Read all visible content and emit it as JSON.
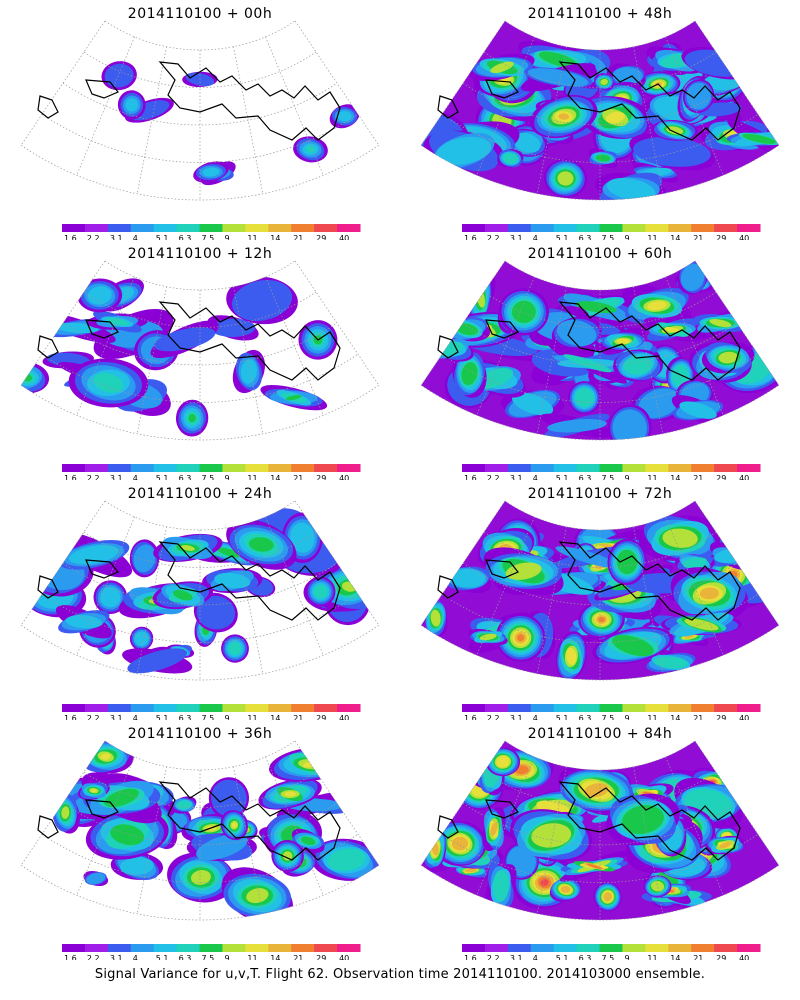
{
  "caption": "Signal Variance for u,v,T. Flight 62. Observation time 2014110100. 2014103000 ensemble.",
  "colorbar": {
    "labels": [
      "1.6",
      "2.2",
      "3.1",
      "4",
      "5.1",
      "6.3",
      "7.5",
      "9",
      "11",
      "14",
      "21",
      "29",
      "40"
    ],
    "colors": [
      "#8b00d4",
      "#a01ee8",
      "#3c5cf0",
      "#2b9bf0",
      "#22c0e6",
      "#1fd2b9",
      "#19c84a",
      "#b4e03a",
      "#e8e03a",
      "#e8b43a",
      "#f08030",
      "#f04850",
      "#f01e8c"
    ]
  },
  "chart_data": [
    {
      "type": "heatmap",
      "title": "2014110100 + 00h",
      "init_time": "2014110100",
      "lead_hours": 0,
      "field": "Signal Variance u,v,T",
      "max_level": "5.1",
      "coverage": "sparse"
    },
    {
      "type": "heatmap",
      "title": "2014110100 + 12h",
      "init_time": "2014110100",
      "lead_hours": 12,
      "field": "Signal Variance u,v,T",
      "max_level": "6.3",
      "coverage": "low"
    },
    {
      "type": "heatmap",
      "title": "2014110100 + 24h",
      "init_time": "2014110100",
      "lead_hours": 24,
      "field": "Signal Variance u,v,T",
      "max_level": "7.5",
      "coverage": "moderate"
    },
    {
      "type": "heatmap",
      "title": "2014110100 + 36h",
      "init_time": "2014110100",
      "lead_hours": 36,
      "field": "Signal Variance u,v,T",
      "max_level": "9",
      "coverage": "moderate"
    },
    {
      "type": "heatmap",
      "title": "2014110100 + 48h",
      "init_time": "2014110100",
      "lead_hours": 48,
      "field": "Signal Variance u,v,T",
      "max_level": "11",
      "coverage": "high"
    },
    {
      "type": "heatmap",
      "title": "2014110100 + 60h",
      "init_time": "2014110100",
      "lead_hours": 60,
      "field": "Signal Variance u,v,T",
      "max_level": "11",
      "coverage": "high"
    },
    {
      "type": "heatmap",
      "title": "2014110100 + 72h",
      "init_time": "2014110100",
      "lead_hours": 72,
      "field": "Signal Variance u,v,T",
      "max_level": "14",
      "coverage": "high"
    },
    {
      "type": "heatmap",
      "title": "2014110100 + 84h",
      "init_time": "2014110100",
      "lead_hours": 84,
      "field": "Signal Variance u,v,T",
      "max_level": "21",
      "coverage": "high"
    }
  ]
}
